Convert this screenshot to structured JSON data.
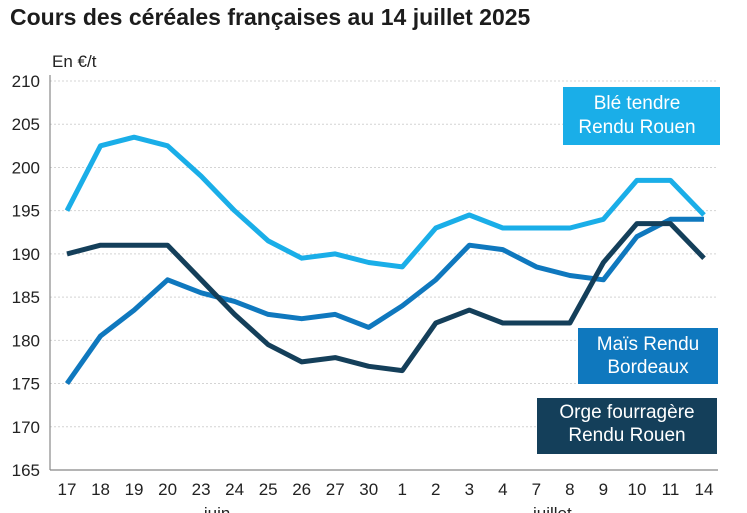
{
  "chart_data": {
    "type": "line",
    "title": "Cours des céréales françaises au 14 juillet 2025",
    "ylabel": "En €/t",
    "xlabel": "",
    "ylim": [
      165,
      210
    ],
    "yticks": [
      210,
      205,
      200,
      195,
      190,
      185,
      180,
      175,
      170,
      165
    ],
    "categories": [
      "17",
      "18",
      "19",
      "20",
      "23",
      "24",
      "25",
      "26",
      "27",
      "30",
      "1",
      "2",
      "3",
      "4",
      "7",
      "8",
      "9",
      "10",
      "11",
      "14"
    ],
    "month_labels": [
      {
        "label": "juin",
        "category": "23"
      },
      {
        "label": "juillet",
        "category": "7"
      }
    ],
    "grid": true,
    "series": [
      {
        "name": "Blé tendre Rendu Rouen",
        "label_lines": [
          "Blé tendre",
          "Rendu Rouen"
        ],
        "color": "#1aaee8",
        "values": [
          195,
          202.5,
          203.5,
          202.5,
          199,
          195,
          191.5,
          189.5,
          190,
          189,
          188.5,
          193,
          194.5,
          193,
          193,
          193,
          194,
          198.5,
          198.5,
          194.5
        ]
      },
      {
        "name": "Maïs Rendu Bordeaux",
        "label_lines": [
          "Maïs Rendu",
          "Bordeaux"
        ],
        "color": "#0f78be",
        "values": [
          175,
          180.5,
          183.5,
          187,
          185.5,
          184.5,
          183,
          182.5,
          183,
          181.5,
          184,
          187,
          191,
          190.5,
          188.5,
          187.5,
          187,
          192,
          194,
          194
        ]
      },
      {
        "name": "Orge fourragère Rendu Rouen",
        "label_lines": [
          "Orge fourragère",
          "Rendu Rouen"
        ],
        "color": "#143f5a",
        "values": [
          190,
          191,
          191,
          191,
          187,
          183,
          179.5,
          177.5,
          178,
          177,
          176.5,
          182,
          183.5,
          182,
          182,
          182,
          189,
          193.5,
          193.5,
          189.5
        ]
      }
    ]
  }
}
